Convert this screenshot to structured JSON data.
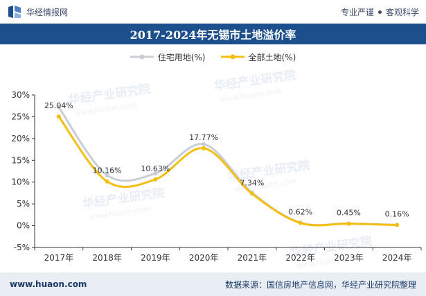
{
  "header": {
    "brand": "华经情报网",
    "tagline_left": "专业严谨",
    "tagline_right": "客观科学"
  },
  "footer": {
    "url": "www.huaon.com",
    "source": "数据来源：国信房地产信息网，华经产业研究院整理"
  },
  "watermark": {
    "text": "华经产业研究院",
    "domain": "www.huaon.com"
  },
  "chart_data": {
    "type": "line",
    "title": "2017-2024年无锡市土地溢价率",
    "categories": [
      "2017年",
      "2018年",
      "2019年",
      "2020年",
      "2021年",
      "2022年",
      "2023年",
      "2024年"
    ],
    "series": [
      {
        "name": "住宅用地(%)",
        "color": "#c9cdd6",
        "values": [
          27.2,
          11.6,
          12.0,
          18.7,
          7.6,
          0.7,
          0.5,
          0.2
        ],
        "labels": [
          "",
          "",
          "",
          "",
          "",
          "",
          "",
          ""
        ]
      },
      {
        "name": "全部土地(%)",
        "color": "#f5be12",
        "values": [
          25.04,
          10.16,
          10.63,
          17.77,
          7.34,
          0.62,
          0.45,
          0.16
        ],
        "labels": [
          "25.04%",
          "10.16%",
          "10.63%",
          "17.77%",
          "7.34%",
          "0.62%",
          "0.45%",
          "0.16%"
        ]
      }
    ],
    "y_ticks": [
      "30%",
      "25%",
      "20%",
      "15%",
      "10%",
      "5%",
      "0%",
      "-5%"
    ],
    "ylim": [
      -5,
      30
    ],
    "xlabel": "",
    "ylabel": "",
    "legend_position": "top-center",
    "grid": false
  }
}
